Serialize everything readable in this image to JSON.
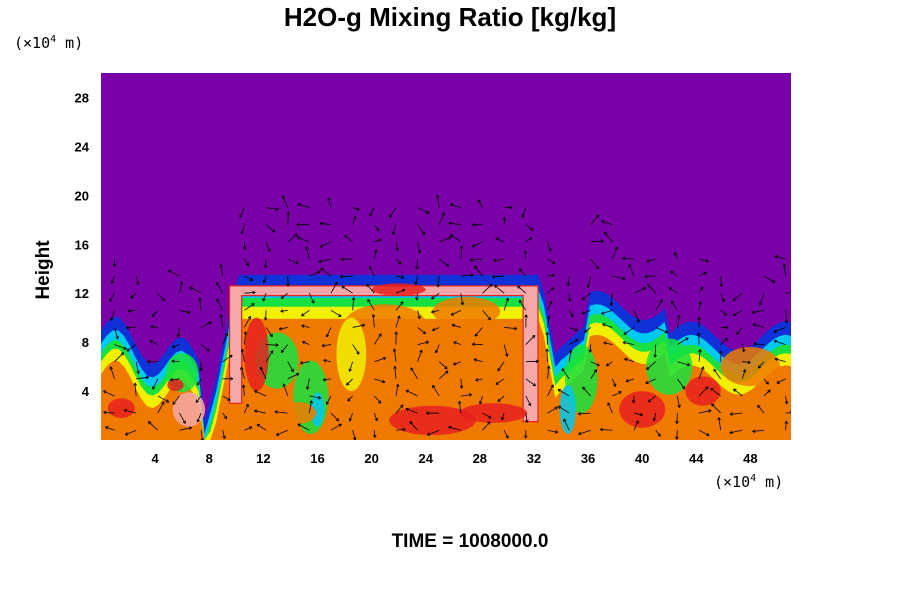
{
  "chart_data": {
    "type": "heatmap",
    "title": "H2O-g Mixing Ratio [kg/kg]",
    "ylabel": "Height",
    "x_unit": {
      "prefix": "(×10",
      "exponent": "4",
      "suffix": " m)"
    },
    "y_unit": {
      "prefix": "(×10",
      "exponent": "4",
      "suffix": " m)"
    },
    "xlim": [
      0,
      51
    ],
    "ylim": [
      0,
      30
    ],
    "x_ticks": [
      4,
      8,
      12,
      16,
      20,
      24,
      28,
      32,
      36,
      40,
      44,
      48
    ],
    "y_ticks": [
      4,
      8,
      12,
      16,
      20,
      24,
      28
    ],
    "time_label": "TIME = 1008000.0",
    "colors": {
      "background": "#7a00a8",
      "blue": "#1030d8",
      "cyan": "#00c8f0",
      "green": "#18e040",
      "yellow": "#f0f000",
      "orange": "#f07a00",
      "red": "#e82020",
      "pink": "#f5a8a8"
    },
    "regions": [
      {
        "name": "left-column",
        "x": [
          0,
          8
        ],
        "top": 8
      },
      {
        "name": "central-cloud",
        "x": [
          8,
          34
        ],
        "top": 13.5
      },
      {
        "name": "right-column",
        "x": [
          34,
          51
        ],
        "top": 9
      }
    ]
  }
}
